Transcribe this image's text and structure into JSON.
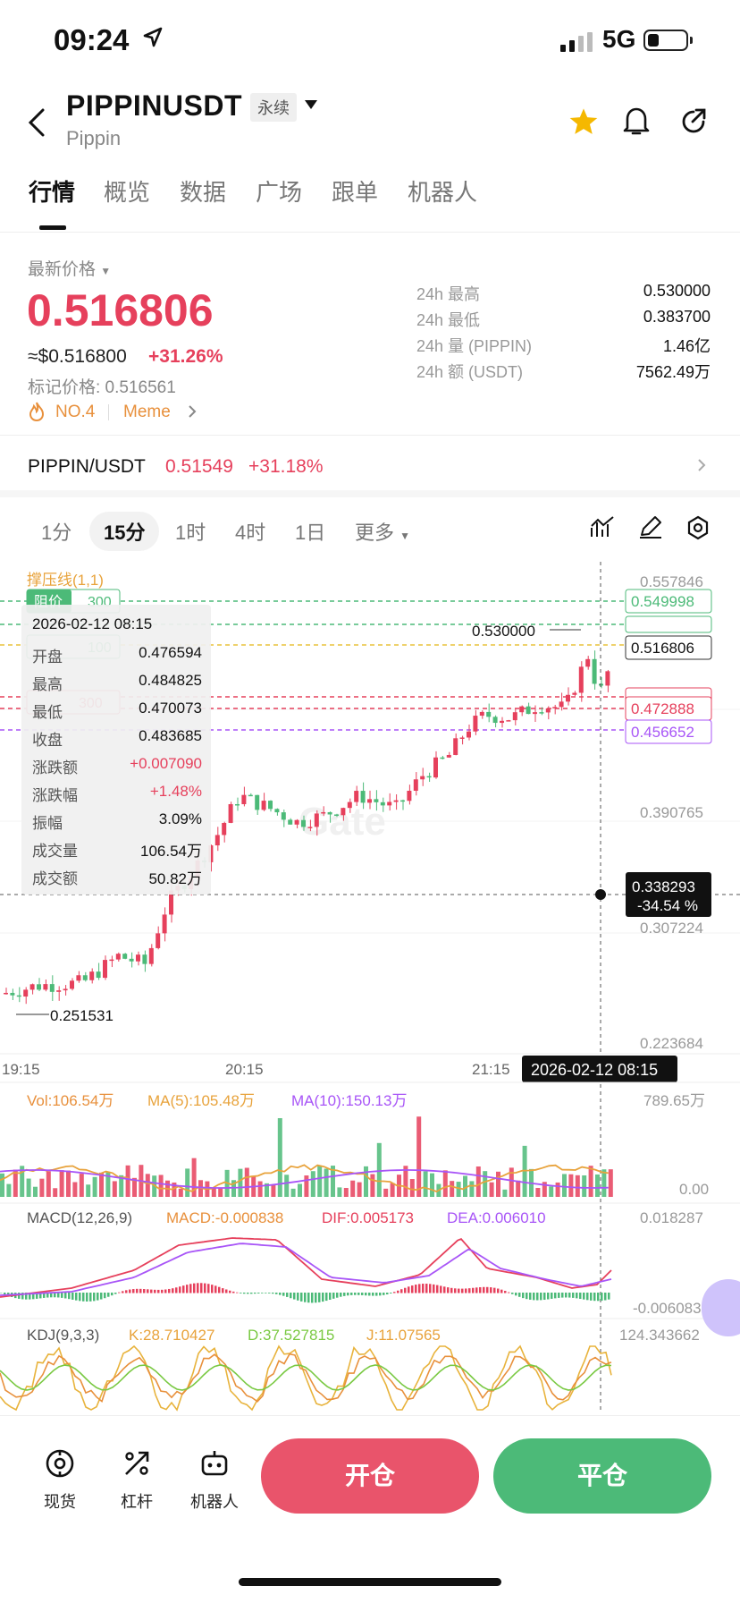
{
  "status_bar": {
    "time": "09:24",
    "network": "5G"
  },
  "header": {
    "symbol": "PIPPINUSDT",
    "contract_type": "永续",
    "subtitle": "Pippin"
  },
  "tabs": [
    {
      "label": "行情",
      "active": true
    },
    {
      "label": "概览"
    },
    {
      "label": "数据"
    },
    {
      "label": "广场"
    },
    {
      "label": "跟单"
    },
    {
      "label": "机器人"
    }
  ],
  "ticker": {
    "latest_label": "最新价格",
    "price": "0.516806",
    "usd_price": "≈$0.516800",
    "change_pct": "+31.26%",
    "mark_price": "标记价格: 0.516561",
    "rank": "NO.4",
    "category": "Meme"
  },
  "stats_24h": [
    {
      "label": "24h  最高",
      "value": "0.530000"
    },
    {
      "label": "24h  最低",
      "value": "0.383700"
    },
    {
      "label": "24h  量 (PIPPIN)",
      "value": "1.46亿"
    },
    {
      "label": "24h  额 (USDT)",
      "value": "7562.49万"
    }
  ],
  "spot_pair": {
    "name": "PIPPIN/USDT",
    "price": "0.51549",
    "change": "+31.18%"
  },
  "timeframes": [
    {
      "label": "1分"
    },
    {
      "label": "15分",
      "active": true
    },
    {
      "label": "1时"
    },
    {
      "label": "4时"
    },
    {
      "label": "1日"
    },
    {
      "label": "更多"
    }
  ],
  "chart_overlay": {
    "indicator": "撑压线(1,1)",
    "watermark": "Gate",
    "order_badges": {
      "resistance_label": "阻价",
      "resistance_value": "300",
      "b2": "100",
      "support_value": "300"
    },
    "high_marker": "0.530000",
    "low_marker": "0.251531",
    "crosshair_price": "0.338293",
    "crosshair_pct": "-34.54 %",
    "crosshair_time": "2026-02-12 08:15",
    "y_labels": [
      "0.557846",
      "0.390765",
      "0.307224",
      "0.223684"
    ],
    "price_tags": [
      {
        "value": "0.549998",
        "color": "#4cba78"
      },
      {
        "value": "0.516806",
        "color": "#333333"
      },
      {
        "value": "0.472888",
        "color": "#e6405c"
      },
      {
        "value": "0.456652",
        "color": "#a855f7"
      }
    ],
    "x_labels": [
      "19:15",
      "20:15",
      "21:15"
    ]
  },
  "candle_info": {
    "time": "2026-02-12 08:15",
    "rows": [
      {
        "k": "开盘",
        "v": "0.476594"
      },
      {
        "k": "最高",
        "v": "0.484825"
      },
      {
        "k": "最低",
        "v": "0.470073"
      },
      {
        "k": "收盘",
        "v": "0.483685"
      },
      {
        "k": "涨跌额",
        "v": "+0.007090",
        "color": "#e6405c"
      },
      {
        "k": "涨跌幅",
        "v": "+1.48%",
        "color": "#e6405c"
      },
      {
        "k": "振幅",
        "v": "3.09%"
      },
      {
        "k": "成交量",
        "v": "106.54万"
      },
      {
        "k": "成交额",
        "v": "50.82万"
      }
    ]
  },
  "volume_panel": {
    "vol": "Vol:106.54万",
    "ma5": "MA(5):105.48万",
    "ma10": "MA(10):150.13万",
    "max": "789.65万",
    "min": "0.00"
  },
  "macd_panel": {
    "title": "MACD(12,26,9)",
    "macd": "MACD:-0.000838",
    "dif": "DIF:0.005173",
    "dea": "DEA:0.006010",
    "max": "0.018287",
    "min": "-0.006083"
  },
  "kdj_panel": {
    "title": "KDJ(9,3,3)",
    "k": "K:28.710427",
    "d": "D:37.527815",
    "j": "J:11.07565",
    "max": "124.343662"
  },
  "bottom_nav": [
    {
      "label": "现货",
      "icon": "spot-icon"
    },
    {
      "label": "杠杆",
      "icon": "leverage-icon"
    },
    {
      "label": "机器人",
      "icon": "robot-icon"
    }
  ],
  "actions": {
    "open": "开仓",
    "close": "平仓"
  },
  "colors": {
    "up": "#e6405c",
    "down": "#4cba78",
    "accent": "#e8903c",
    "ma5": "#e8a33c",
    "ma10": "#a855f7"
  },
  "chart_data": {
    "type": "candlestick",
    "interval": "15分",
    "ylim": [
      0.223684,
      0.557846
    ],
    "x_ticks": [
      "19:15",
      "20:15",
      "21:15"
    ],
    "reference_lines": [
      0.549998,
      0.516806,
      0.472888,
      0.456652
    ],
    "high": 0.53,
    "low": 0.251531,
    "crosshair": {
      "time": "2026-02-12 08:15",
      "price": 0.338293
    },
    "hovered_candle": {
      "open": 0.476594,
      "high": 0.484825,
      "low": 0.470073,
      "close": 0.483685
    }
  }
}
